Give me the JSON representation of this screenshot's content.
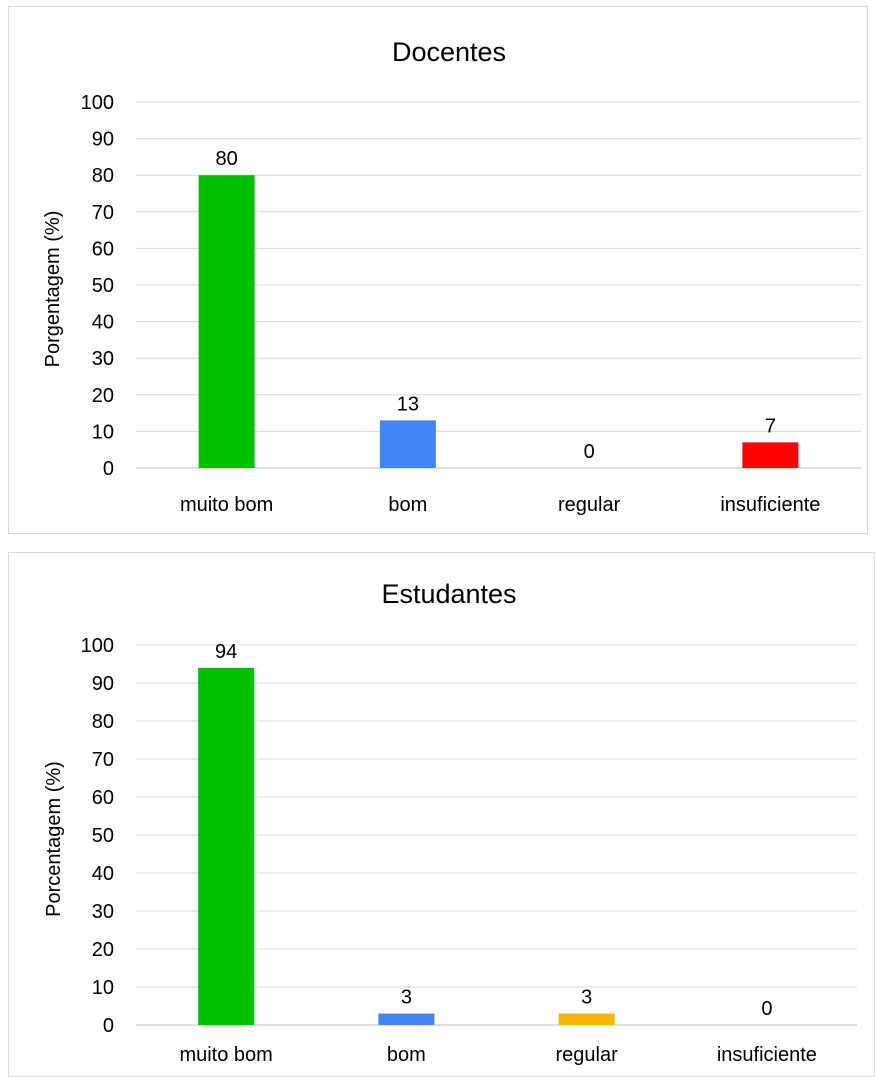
{
  "chart_data": [
    {
      "type": "bar",
      "title": "Docentes",
      "xlabel": "",
      "ylabel": "Porgentagem (%)",
      "categories": [
        "muito bom",
        "bom",
        "regular",
        "insuficiente"
      ],
      "values": [
        80,
        13,
        0,
        7
      ],
      "data_labels": [
        "80",
        "13",
        "0",
        "7"
      ],
      "colors": [
        "#00c000",
        "#4285f4",
        "#ffc000",
        "#ff0000"
      ],
      "ylim": [
        0,
        100
      ],
      "yticks": [
        0,
        10,
        20,
        30,
        40,
        50,
        60,
        70,
        80,
        90,
        100
      ],
      "grid": true,
      "legend": "none"
    },
    {
      "type": "bar",
      "title": "Estudantes",
      "xlabel": "",
      "ylabel": "Porcentagem (%)",
      "categories": [
        "muito bom",
        "bom",
        "regular",
        "insuficiente"
      ],
      "values": [
        94,
        3,
        3,
        0
      ],
      "data_labels": [
        "94",
        "3",
        "3",
        "0"
      ],
      "colors": [
        "#00c000",
        "#4285f4",
        "#f4b400",
        "#ff0000"
      ],
      "ylim": [
        0,
        100
      ],
      "yticks": [
        0,
        10,
        20,
        30,
        40,
        50,
        60,
        70,
        80,
        90,
        100
      ],
      "grid": true,
      "legend": "none"
    }
  ]
}
